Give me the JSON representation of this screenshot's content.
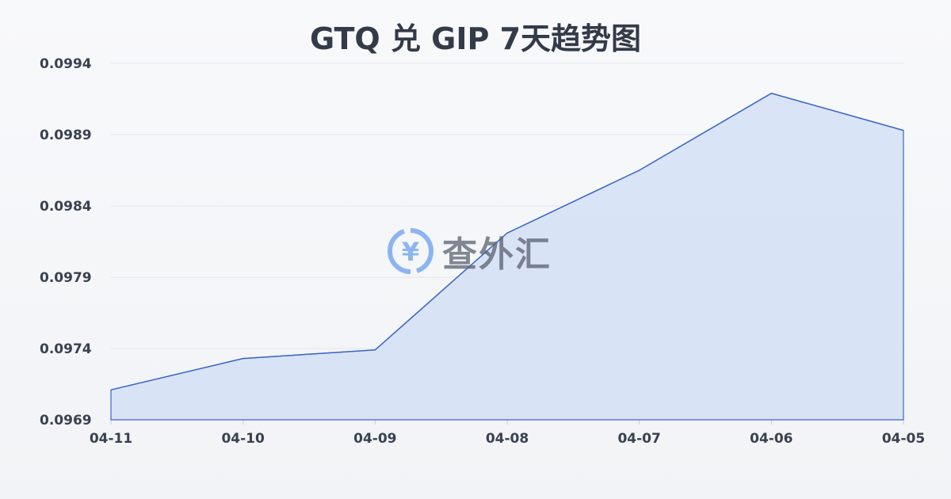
{
  "chart_data": {
    "type": "area",
    "title": "GTQ 兑 GIP 7天趋势图",
    "xlabel": "",
    "ylabel": "",
    "categories": [
      "04-11",
      "04-10",
      "04-09",
      "04-08",
      "04-07",
      "04-06",
      "04-05"
    ],
    "values": [
      0.09711,
      0.09733,
      0.09739,
      0.09821,
      0.09865,
      0.09919,
      0.09893
    ],
    "ylim": [
      0.0969,
      0.0994
    ],
    "yticks": [
      "0.0994",
      "0.0989",
      "0.0984",
      "0.0979",
      "0.0974",
      "0.0969"
    ],
    "grid": true,
    "colors": {
      "line": "#3a66c8",
      "fill": "#d6e1f5"
    }
  },
  "watermark": {
    "text": "查外汇",
    "icon": "yen-exchange-icon"
  }
}
